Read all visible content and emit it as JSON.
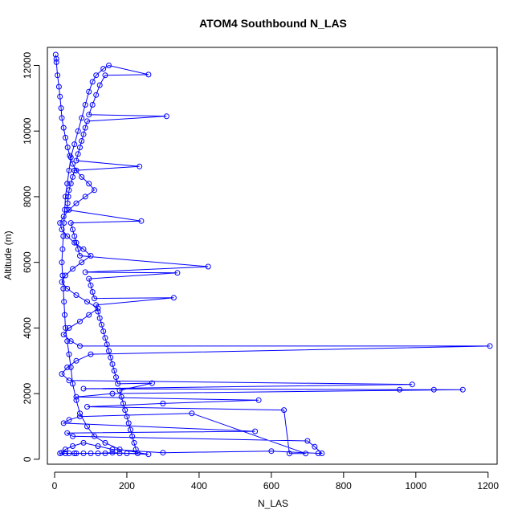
{
  "chart_data": {
    "type": "line",
    "title": "ATOM4 Southbound N_LAS",
    "xlabel": "N_LAS",
    "ylabel": "Altitude (m)",
    "xlim": [
      -20,
      1225
    ],
    "ylim": [
      -150,
      12550
    ],
    "xticks": [
      0,
      200,
      400,
      600,
      800,
      1000,
      1200
    ],
    "yticks": [
      0,
      2000,
      4000,
      6000,
      8000,
      10000,
      12000
    ],
    "grid": false,
    "series": [
      {
        "name": "",
        "color": "#0000ff",
        "points": [
          [
            3,
            12330
          ],
          [
            5,
            12200
          ],
          [
            5,
            12100
          ],
          [
            8,
            11700
          ],
          [
            12,
            11350
          ],
          [
            15,
            11050
          ],
          [
            18,
            10700
          ],
          [
            20,
            10400
          ],
          [
            25,
            10100
          ],
          [
            30,
            9800
          ],
          [
            36,
            9500
          ],
          [
            42,
            9250
          ],
          [
            50,
            9000
          ],
          [
            60,
            8800
          ],
          [
            75,
            8600
          ],
          [
            95,
            8400
          ],
          [
            110,
            8200
          ],
          [
            85,
            8000
          ],
          [
            60,
            7800
          ],
          [
            40,
            7600
          ],
          [
            25,
            7400
          ],
          [
            15,
            7200
          ],
          [
            20,
            7000
          ],
          [
            35,
            6800
          ],
          [
            55,
            6600
          ],
          [
            80,
            6400
          ],
          [
            100,
            6200
          ],
          [
            75,
            6000
          ],
          [
            50,
            5800
          ],
          [
            30,
            5600
          ],
          [
            20,
            5400
          ],
          [
            35,
            5200
          ],
          [
            60,
            5000
          ],
          [
            90,
            4800
          ],
          [
            120,
            4600
          ],
          [
            95,
            4400
          ],
          [
            70,
            4200
          ],
          [
            40,
            4000
          ],
          [
            25,
            3800
          ],
          [
            45,
            3600
          ],
          [
            70,
            3450
          ],
          [
            1205,
            3450
          ],
          [
            100,
            3200
          ],
          [
            60,
            3000
          ],
          [
            35,
            2800
          ],
          [
            20,
            2600
          ],
          [
            40,
            2400
          ],
          [
            990,
            2280
          ],
          [
            80,
            2150
          ],
          [
            955,
            2120
          ],
          [
            1050,
            2120
          ],
          [
            1130,
            2120
          ],
          [
            160,
            2000
          ],
          [
            60,
            1900
          ],
          [
            565,
            1800
          ],
          [
            300,
            1700
          ],
          [
            90,
            1600
          ],
          [
            635,
            1500
          ],
          [
            650,
            175
          ],
          [
            695,
            175
          ],
          [
            380,
            1400
          ],
          [
            70,
            1300
          ],
          [
            40,
            1200
          ],
          [
            25,
            1100
          ],
          [
            555,
            850
          ],
          [
            35,
            800
          ],
          [
            50,
            700
          ],
          [
            700,
            560
          ],
          [
            720,
            380
          ],
          [
            740,
            180
          ],
          [
            730,
            180
          ],
          [
            600,
            250
          ],
          [
            300,
            200
          ],
          [
            160,
            300
          ],
          [
            120,
            400
          ],
          [
            80,
            500
          ],
          [
            50,
            400
          ],
          [
            30,
            300
          ],
          [
            20,
            200
          ],
          [
            15,
            180
          ],
          [
            60,
            180
          ],
          [
            120,
            180
          ],
          [
            160,
            200
          ],
          [
            200,
            180
          ],
          [
            260,
            150
          ],
          [
            180,
            300
          ],
          [
            140,
            500
          ],
          [
            110,
            700
          ],
          [
            90,
            1000
          ],
          [
            70,
            1400
          ],
          [
            60,
            1800
          ],
          [
            50,
            2300
          ],
          [
            45,
            2800
          ],
          [
            40,
            3200
          ],
          [
            35,
            3600
          ],
          [
            30,
            4000
          ],
          [
            28,
            4400
          ],
          [
            26,
            4800
          ],
          [
            24,
            5200
          ],
          [
            22,
            5600
          ],
          [
            20,
            6000
          ],
          [
            22,
            6400
          ],
          [
            24,
            6800
          ],
          [
            26,
            7200
          ],
          [
            28,
            7600
          ],
          [
            30,
            8000
          ],
          [
            35,
            8400
          ],
          [
            40,
            8800
          ],
          [
            45,
            9200
          ],
          [
            55,
            9600
          ],
          [
            65,
            10000
          ],
          [
            75,
            10400
          ],
          [
            85,
            10800
          ],
          [
            95,
            11200
          ],
          [
            105,
            11500
          ],
          [
            115,
            11700
          ],
          [
            135,
            11900
          ],
          [
            150,
            12000
          ],
          [
            260,
            11720
          ],
          [
            140,
            11700
          ],
          [
            125,
            11400
          ],
          [
            115,
            11100
          ],
          [
            105,
            10800
          ],
          [
            95,
            10500
          ],
          [
            310,
            10450
          ],
          [
            90,
            10300
          ],
          [
            85,
            10100
          ],
          [
            80,
            9900
          ],
          [
            75,
            9700
          ],
          [
            70,
            9500
          ],
          [
            65,
            9300
          ],
          [
            60,
            9100
          ],
          [
            235,
            8920
          ],
          [
            55,
            8800
          ],
          [
            50,
            8600
          ],
          [
            45,
            8400
          ],
          [
            40,
            8200
          ],
          [
            38,
            8000
          ],
          [
            36,
            7800
          ],
          [
            34,
            7600
          ],
          [
            240,
            7260
          ],
          [
            45,
            7200
          ],
          [
            50,
            7000
          ],
          [
            55,
            6800
          ],
          [
            60,
            6600
          ],
          [
            65,
            6400
          ],
          [
            70,
            6200
          ],
          [
            425,
            5870
          ],
          [
            85,
            5700
          ],
          [
            340,
            5680
          ],
          [
            95,
            5500
          ],
          [
            100,
            5300
          ],
          [
            105,
            5100
          ],
          [
            110,
            4900
          ],
          [
            330,
            4920
          ],
          [
            115,
            4700
          ],
          [
            120,
            4500
          ],
          [
            125,
            4300
          ],
          [
            130,
            4100
          ],
          [
            135,
            3900
          ],
          [
            140,
            3700
          ],
          [
            145,
            3500
          ],
          [
            150,
            3300
          ],
          [
            155,
            3100
          ],
          [
            160,
            2900
          ],
          [
            165,
            2700
          ],
          [
            170,
            2500
          ],
          [
            175,
            2300
          ],
          [
            270,
            2320
          ],
          [
            180,
            2100
          ],
          [
            185,
            1900
          ],
          [
            190,
            1700
          ],
          [
            195,
            1500
          ],
          [
            200,
            1300
          ],
          [
            205,
            1100
          ],
          [
            210,
            900
          ],
          [
            215,
            700
          ],
          [
            220,
            500
          ],
          [
            225,
            300
          ],
          [
            230,
            180
          ],
          [
            180,
            180
          ],
          [
            140,
            180
          ],
          [
            100,
            180
          ],
          [
            80,
            180
          ],
          [
            55,
            180
          ],
          [
            40,
            180
          ],
          [
            30,
            180
          ]
        ]
      }
    ]
  }
}
